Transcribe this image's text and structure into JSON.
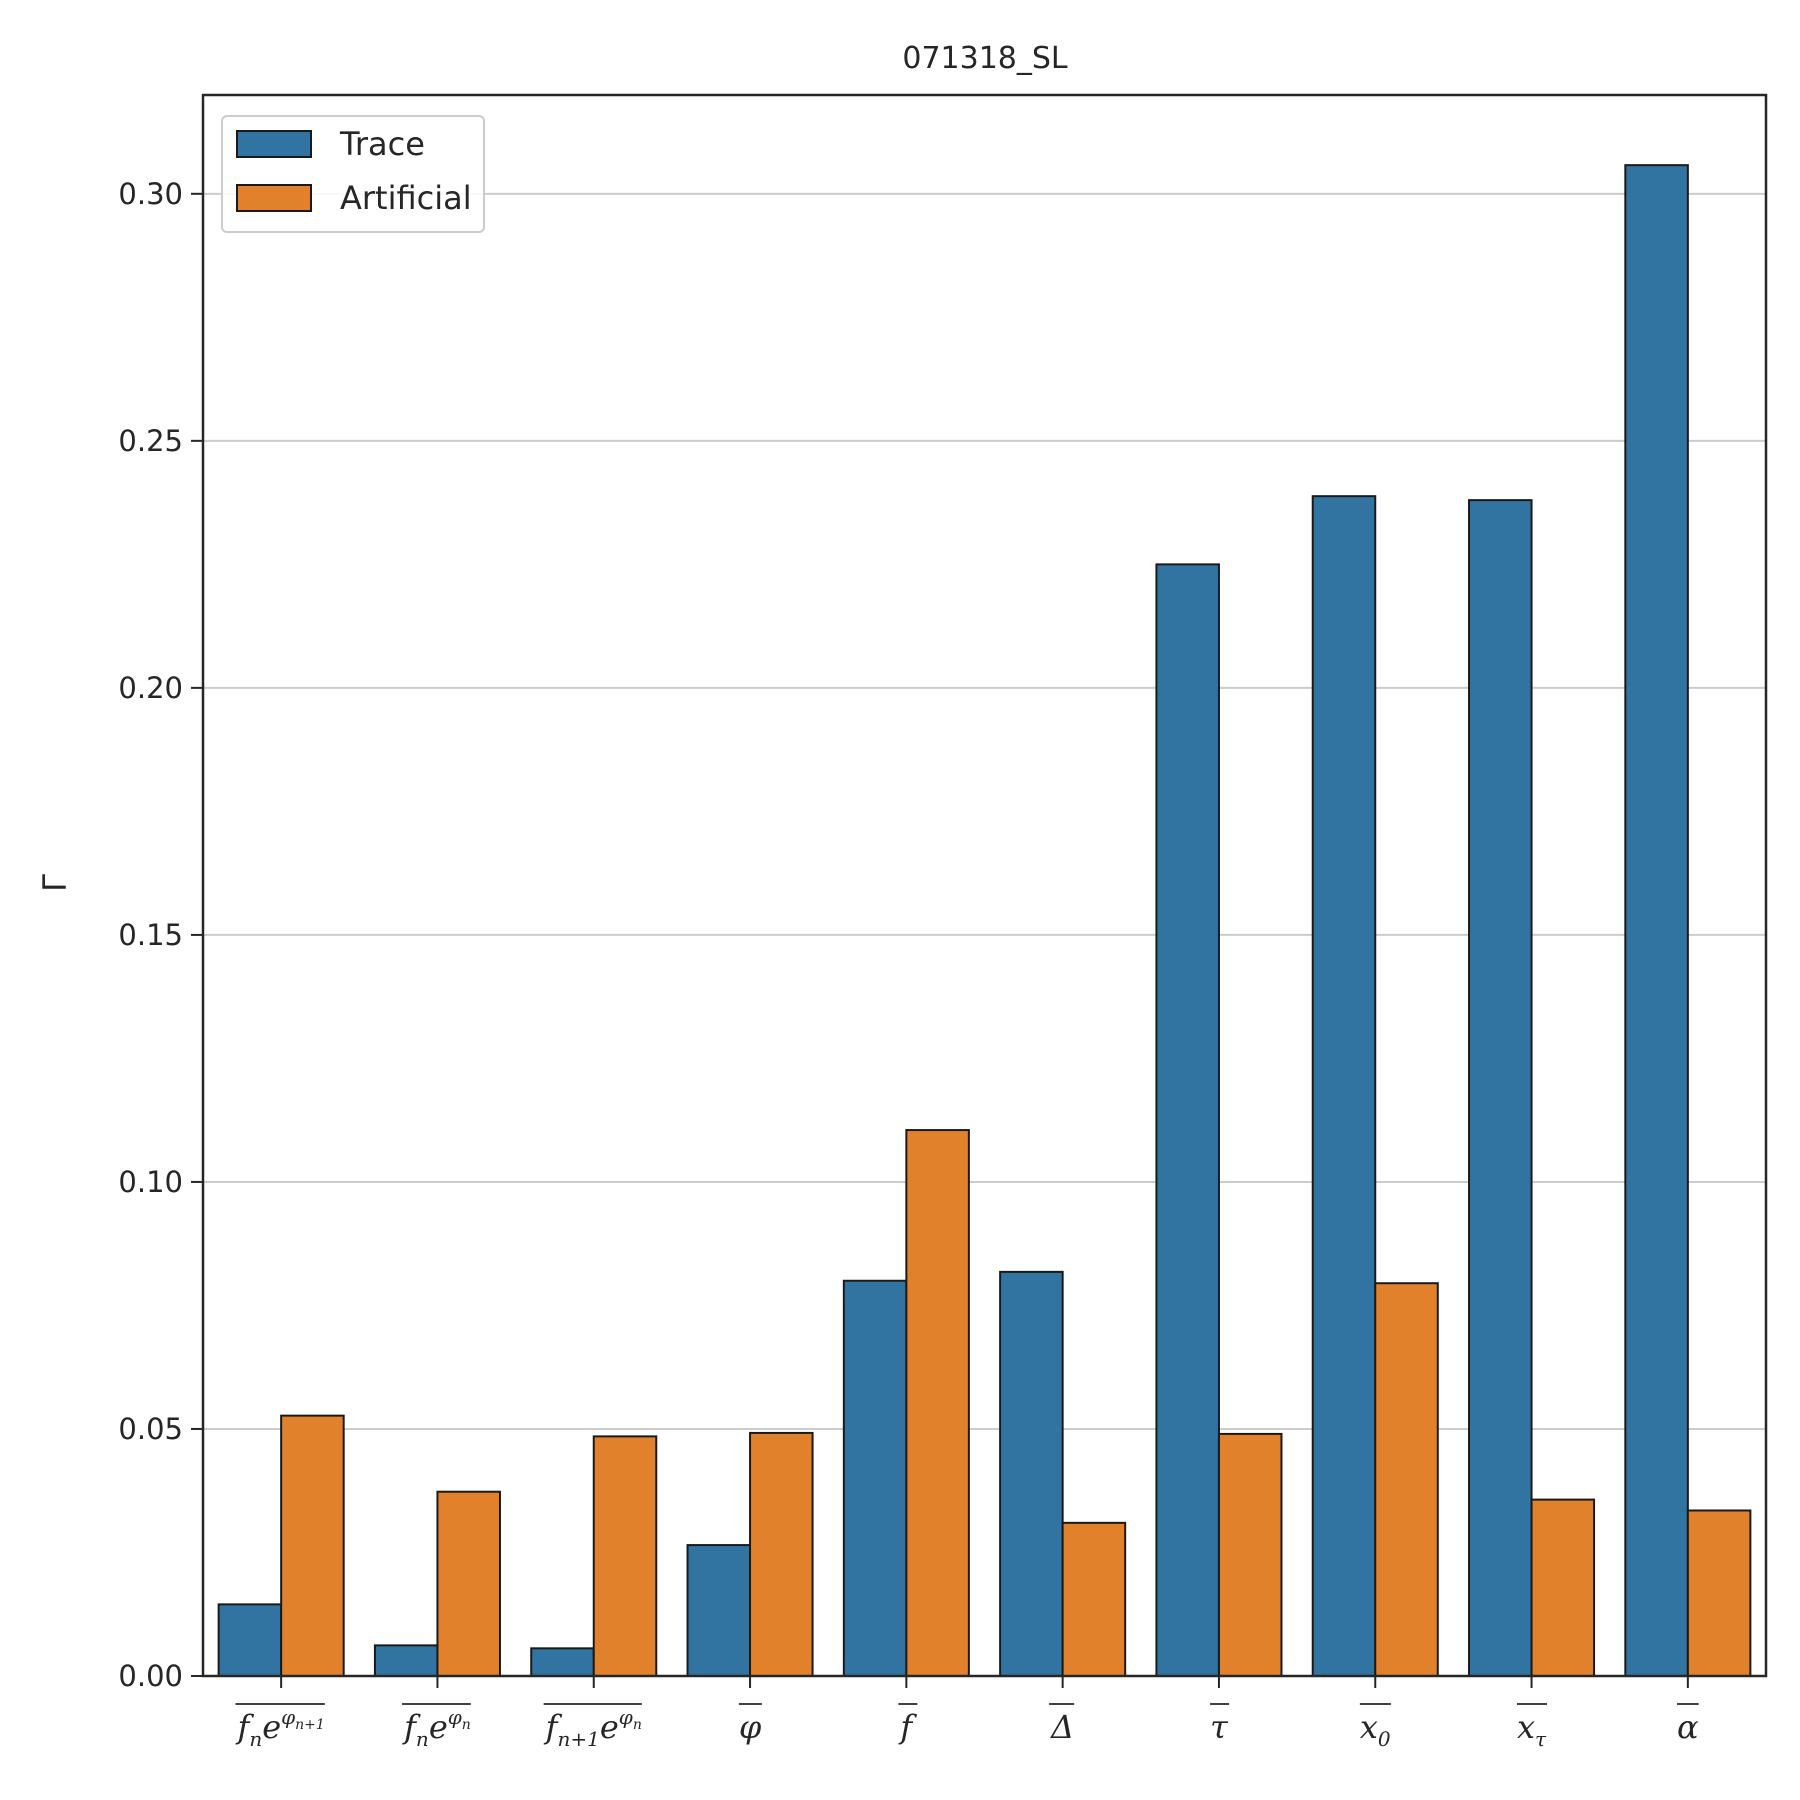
{
  "chart_data": {
    "type": "bar",
    "title": "071318_SL",
    "xlabel": "",
    "ylabel": "Γ",
    "ylim": [
      0,
      0.32
    ],
    "yticks": [
      "0.00",
      "0.05",
      "0.10",
      "0.15",
      "0.20",
      "0.25",
      "0.30"
    ],
    "grid": "horizontal",
    "legend": "top-left",
    "categories": [
      {
        "base": "f",
        "sub": "n",
        "e": "e",
        "sup_base": "φ",
        "sup_sub": "n+1"
      },
      {
        "base": "f",
        "sub": "n",
        "e": "e",
        "sup_base": "φ",
        "sup_sub": "n"
      },
      {
        "base": "f",
        "sub": "n+1",
        "e": "e",
        "sup_base": "φ",
        "sup_sub": "n"
      },
      {
        "base": "φ"
      },
      {
        "base": "f"
      },
      {
        "base": "Δ"
      },
      {
        "base": "τ"
      },
      {
        "base": "x",
        "sub": "0"
      },
      {
        "base": "x",
        "sub": "τ"
      },
      {
        "base": "α"
      }
    ],
    "series": [
      {
        "name": "Trace",
        "color": "#3274a1",
        "values": [
          0.0145,
          0.0062,
          0.0056,
          0.0265,
          0.08,
          0.0818,
          0.225,
          0.2388,
          0.238,
          0.3058
        ]
      },
      {
        "name": "Artificial",
        "color": "#e1812c",
        "values": [
          0.0527,
          0.0373,
          0.0485,
          0.0492,
          0.1105,
          0.031,
          0.049,
          0.0795,
          0.0357,
          0.0335
        ]
      }
    ]
  }
}
